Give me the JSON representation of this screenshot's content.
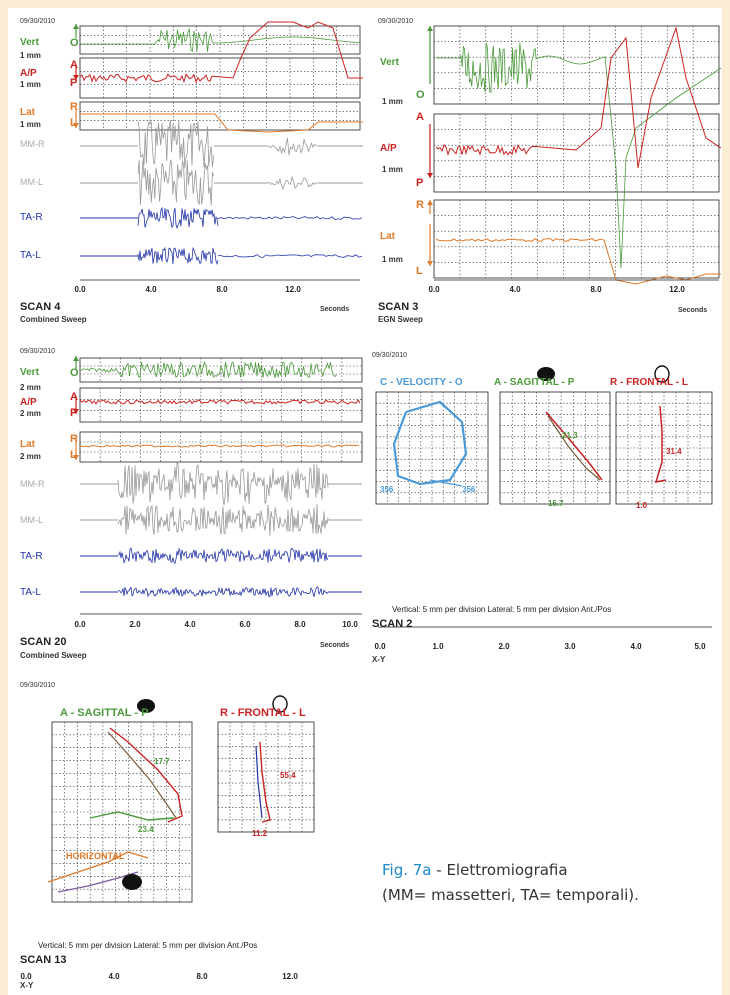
{
  "colors": {
    "vert": "#4a9a3a",
    "ap": "#cc2222",
    "lat": "#e07a2a",
    "mm": "#999999",
    "ta": "#2233aa",
    "vel": "#4a9ad8",
    "accent": "#1a8ac8"
  },
  "caption": {
    "fig": "Fig. 7a",
    "text1": " - Elettromiografia",
    "text2": "(MM= massetteri, TA= temporali)."
  },
  "panels": {
    "scan4": {
      "date": "09/30/2010",
      "scan": "SCAN 4",
      "sweep": "Combined Sweep",
      "seconds": "Seconds",
      "labels": {
        "vert": "Vert",
        "v_unit": "1 mm",
        "ap": "A/P",
        "ap_unit": "1 mm",
        "lat": "Lat",
        "lat_unit": "1 mm",
        "mmr": "MM-R",
        "mml": "MM-L",
        "tar": "TA-R",
        "tal": "TA-L"
      },
      "letters": {
        "o": "O",
        "a": "A",
        "p": "P",
        "r": "R",
        "l": "L"
      },
      "xticks": [
        "0.0",
        "4.0",
        "8.0",
        "12.0"
      ]
    },
    "scan3": {
      "date": "09/30/2010",
      "scan": "SCAN 3",
      "sweep": "EGN Sweep",
      "seconds": "Seconds",
      "labels": {
        "vert": "Vert",
        "v_unit": "1 mm",
        "ap": "A/P",
        "ap_unit": "1 mm",
        "lat": "Lat",
        "lat_unit": "1 mm"
      },
      "letters": {
        "o": "O",
        "a": "A",
        "p": "P",
        "r": "R",
        "l": "L"
      },
      "xticks": [
        "0.0",
        "4.0",
        "8.0",
        "12.0"
      ]
    },
    "scan20": {
      "date": "09/30/2010",
      "scan": "SCAN 20",
      "sweep": "Combined Sweep",
      "seconds": "Seconds",
      "labels": {
        "vert": "Vert",
        "v_unit": "2 mm",
        "ap": "A/P",
        "ap_unit": "2 mm",
        "lat": "Lat",
        "lat_unit": "2 mm",
        "mmr": "MM-R",
        "mml": "MM-L",
        "tar": "TA-R",
        "tal": "TA-L"
      },
      "letters": {
        "o": "O",
        "a": "A",
        "p": "P",
        "r": "R",
        "l": "L"
      },
      "xticks": [
        "0.0",
        "2.0",
        "4.0",
        "6.0",
        "8.0",
        "10.0"
      ]
    },
    "scan2": {
      "date": "09/30/2010",
      "scan": "SCAN 2",
      "sweep": "X-Y",
      "titles": {
        "velocity": "C - VELOCITY - O",
        "sagittal": "A - SAGITTAL - P",
        "frontal": "R - FRONTAL - L"
      },
      "values": {
        "v1": "356",
        "v2": "356",
        "s1": "21.3",
        "s2": "15.7",
        "f1": "31.4",
        "f2": "1.0"
      },
      "scale": "Vertical: 5 mm per division  Lateral: 5 mm per division  Ant./Pos",
      "xticks": [
        "0.0",
        "1.0",
        "2.0",
        "3.0",
        "4.0",
        "5.0"
      ]
    },
    "scan13": {
      "date": "09/30/2010",
      "scan": "SCAN 13",
      "sweep": "X-Y",
      "titles": {
        "sagittal": "A - SAGITTAL - P",
        "frontal": "R - FRONTAL - L"
      },
      "values": {
        "s1": "17.7",
        "s2": "23.4",
        "f1": "55.4",
        "f2": "11.2"
      },
      "notes": {
        "horizontal": "HORIZONTAL"
      },
      "scale": "Vertical: 5 mm per division  Lateral: 5 mm per division  Ant./Pos",
      "xticks": [
        "0.0",
        "4.0",
        "8.0",
        "12.0"
      ]
    }
  },
  "chart_data": [
    {
      "type": "line",
      "title": "SCAN 4",
      "subtitle": "Combined Sweep",
      "xlabel": "Seconds",
      "xlim": [
        0,
        15
      ],
      "x_ticks": [
        0,
        4,
        8,
        12
      ],
      "series": [
        {
          "name": "Vert"
        },
        {
          "name": "A/P"
        },
        {
          "name": "Lat"
        },
        {
          "name": "MM-R"
        },
        {
          "name": "MM-L"
        },
        {
          "name": "TA-R"
        },
        {
          "name": "TA-L"
        }
      ]
    },
    {
      "type": "line",
      "title": "SCAN 3",
      "subtitle": "EGN Sweep",
      "xlabel": "Seconds",
      "xlim": [
        0,
        15
      ],
      "x_ticks": [
        0,
        4,
        8,
        12
      ],
      "series": [
        {
          "name": "Vert"
        },
        {
          "name": "A/P"
        },
        {
          "name": "Lat"
        }
      ]
    },
    {
      "type": "line",
      "title": "SCAN 20",
      "subtitle": "Combined Sweep",
      "xlabel": "Seconds",
      "xlim": [
        0,
        10.5
      ],
      "x_ticks": [
        0,
        2,
        4,
        6,
        8,
        10
      ],
      "series": [
        {
          "name": "Vert"
        },
        {
          "name": "A/P"
        },
        {
          "name": "Lat"
        },
        {
          "name": "MM-R"
        },
        {
          "name": "MM-L"
        },
        {
          "name": "TA-R"
        },
        {
          "name": "TA-L"
        }
      ]
    },
    {
      "type": "scatter",
      "title": "SCAN 2",
      "subtitle": "X-Y",
      "x_ticks": [
        0,
        1,
        2,
        3,
        4,
        5
      ],
      "series": [
        {
          "name": "C - VELOCITY - O"
        },
        {
          "name": "A - SAGITTAL - P"
        },
        {
          "name": "R - FRONTAL - L"
        }
      ]
    },
    {
      "type": "scatter",
      "title": "SCAN 13",
      "subtitle": "X-Y",
      "x_ticks": [
        0,
        4,
        8,
        12
      ],
      "series": [
        {
          "name": "A - SAGITTAL - P"
        },
        {
          "name": "R - FRONTAL - L"
        }
      ]
    }
  ]
}
